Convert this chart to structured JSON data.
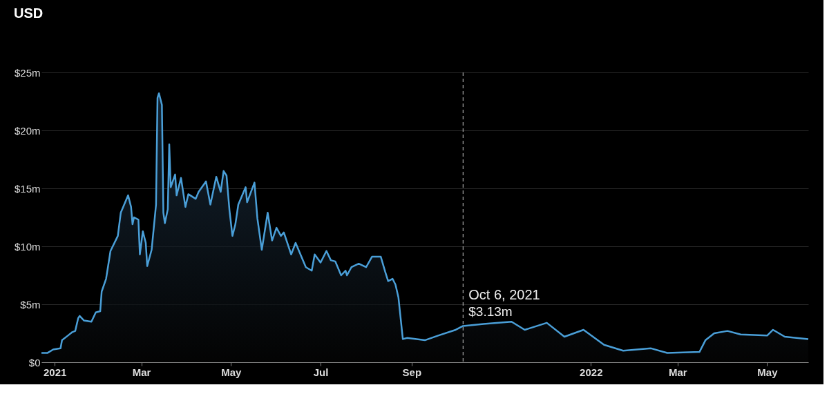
{
  "chart_data": {
    "type": "area",
    "x": [
      "2020-12-23",
      "2020-12-27",
      "2020-12-31",
      "2021-01-05",
      "2021-01-06",
      "2021-01-10",
      "2021-01-13",
      "2021-01-15",
      "2021-01-17",
      "2021-01-18",
      "2021-01-21",
      "2021-01-26",
      "2021-01-29",
      "2021-02-01",
      "2021-02-02",
      "2021-02-05",
      "2021-02-08",
      "2021-02-13",
      "2021-02-15",
      "2021-02-20",
      "2021-02-22",
      "2021-02-23",
      "2021-02-24",
      "2021-02-27",
      "2021-02-28",
      "2021-03-02",
      "2021-03-04",
      "2021-03-05",
      "2021-03-08",
      "2021-03-11",
      "2021-03-12",
      "2021-03-13",
      "2021-03-15",
      "2021-03-16",
      "2021-03-17",
      "2021-03-19",
      "2021-03-20",
      "2021-03-21",
      "2021-03-24",
      "2021-03-25",
      "2021-03-28",
      "2021-03-31",
      "2021-04-02",
      "2021-04-07",
      "2021-04-09",
      "2021-04-14",
      "2021-04-17",
      "2021-04-21",
      "2021-04-24",
      "2021-04-26",
      "2021-04-28",
      "2021-04-30",
      "2021-05-02",
      "2021-05-04",
      "2021-05-06",
      "2021-05-11",
      "2021-05-12",
      "2021-05-17",
      "2021-05-19",
      "2021-05-22",
      "2021-05-26",
      "2021-05-29",
      "2021-06-01",
      "2021-06-04",
      "2021-06-06",
      "2021-06-11",
      "2021-06-14",
      "2021-06-21",
      "2021-06-25",
      "2021-06-27",
      "2021-07-01",
      "2021-07-05",
      "2021-07-08",
      "2021-07-11",
      "2021-07-15",
      "2021-07-18",
      "2021-07-19",
      "2021-07-22",
      "2021-07-27",
      "2021-08-01",
      "2021-08-05",
      "2021-08-11",
      "2021-08-14",
      "2021-08-16",
      "2021-08-19",
      "2021-08-21",
      "2021-08-23",
      "2021-08-26",
      "2021-08-29",
      "2021-09-10",
      "2021-09-19",
      "2021-10-01",
      "2021-10-06",
      "2021-10-20",
      "2021-11-08",
      "2021-11-17",
      "2021-12-02",
      "2021-12-14",
      "2021-12-27",
      "2022-01-10",
      "2022-01-23",
      "2022-02-11",
      "2022-02-22",
      "2022-03-16",
      "2022-03-20",
      "2022-03-26",
      "2022-04-04",
      "2022-04-13",
      "2022-05-01",
      "2022-05-05",
      "2022-05-13",
      "2022-05-29"
    ],
    "series": [
      {
        "color": "#4a9fd8",
        "values": [
          0.8,
          0.8,
          1.1,
          1.2,
          1.9,
          2.3,
          2.6,
          2.7,
          3.8,
          4.0,
          3.6,
          3.5,
          4.3,
          4.4,
          6.1,
          7.2,
          9.6,
          10.9,
          12.9,
          14.4,
          13.4,
          11.9,
          12.5,
          12.3,
          9.3,
          11.3,
          10.3,
          8.3,
          9.7,
          13.6,
          22.8,
          23.2,
          22.2,
          12.9,
          12.0,
          13.2,
          18.8,
          15.1,
          16.2,
          14.4,
          15.9,
          13.4,
          14.5,
          14.1,
          14.7,
          15.6,
          13.6,
          16.0,
          14.7,
          16.5,
          16.1,
          13.1,
          10.9,
          11.9,
          13.6,
          15.1,
          13.8,
          15.5,
          12.4,
          9.7,
          12.9,
          10.5,
          11.6,
          10.9,
          11.2,
          9.3,
          10.3,
          8.2,
          7.9,
          9.3,
          8.6,
          9.6,
          8.8,
          8.7,
          7.5,
          7.9,
          7.5,
          8.2,
          8.5,
          8.2,
          9.1,
          9.1,
          7.8,
          7.0,
          7.2,
          6.7,
          5.6,
          2.0,
          2.1,
          1.9,
          2.3,
          2.8,
          3.13,
          3.3,
          3.5,
          2.8,
          3.4,
          2.2,
          2.8,
          1.5,
          1.0,
          1.2,
          0.8,
          0.9,
          1.9,
          2.5,
          2.7,
          2.4,
          2.3,
          2.8,
          2.2,
          2.0
        ]
      }
    ],
    "xlim": [
      "2020-12-23",
      "2022-05-29"
    ],
    "xticks": [
      {
        "value": "2021-01-01",
        "label": "2021"
      },
      {
        "value": "2021-03-01",
        "label": "Mar"
      },
      {
        "value": "2021-05-01",
        "label": "May"
      },
      {
        "value": "2021-07-01",
        "label": "Jul"
      },
      {
        "value": "2021-09-01",
        "label": "Sep"
      },
      {
        "value": "2022-01-01",
        "label": "2022"
      },
      {
        "value": "2022-03-01",
        "label": "Mar"
      },
      {
        "value": "2022-05-01",
        "label": "May"
      }
    ],
    "ylim": [
      0,
      25
    ],
    "yticks": [
      {
        "value": 0,
        "label": "$0"
      },
      {
        "value": 5,
        "label": "$5m"
      },
      {
        "value": 10,
        "label": "$10m"
      },
      {
        "value": 15,
        "label": "$15m"
      },
      {
        "value": 20,
        "label": "$20m"
      },
      {
        "value": 25,
        "label": "$25m"
      }
    ],
    "grid": "y",
    "ref_lines": [
      {
        "axis": "x",
        "value": "2021-10-06",
        "line_style": "dashed",
        "color": "#cccccc"
      }
    ],
    "annotations": [
      "USD",
      {
        "text": "Oct 6, 2021",
        "x": "2021-10-06",
        "y": 3.13
      },
      {
        "text": "$3.13m",
        "x": "2021-10-06",
        "y": 3.13
      }
    ]
  }
}
